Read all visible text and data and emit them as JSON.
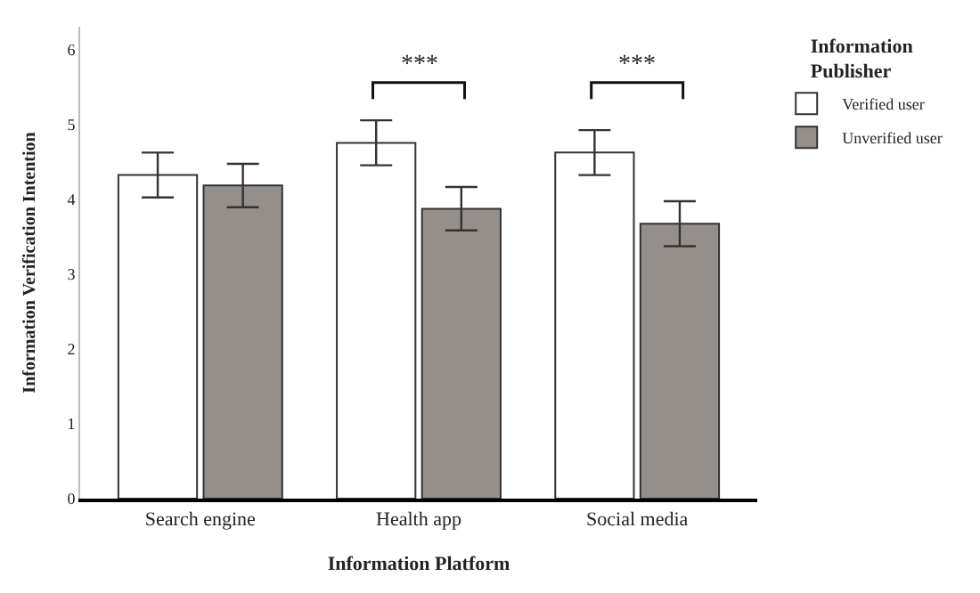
{
  "chart_data": {
    "type": "bar",
    "xlabel": "Information Platform",
    "ylabel": "Information Verification Intention",
    "legend_title": "Information Publisher",
    "categories": [
      "Search engine",
      "Health app",
      "Social media"
    ],
    "series": [
      {
        "name": "Verified user",
        "color": "#ffffff",
        "values": [
          4.32,
          4.75,
          4.62
        ],
        "errors": [
          0.3,
          0.3,
          0.3
        ]
      },
      {
        "name": "Unverified user",
        "color": "#958f8c",
        "values": [
          4.18,
          3.87,
          3.67
        ],
        "errors": [
          0.29,
          0.29,
          0.3
        ]
      }
    ],
    "annotations": [
      "***",
      "***"
    ],
    "ylim": [
      0,
      6.3
    ],
    "yticks": [
      0,
      1,
      2,
      3,
      4,
      5,
      6
    ],
    "legend": "top right"
  }
}
